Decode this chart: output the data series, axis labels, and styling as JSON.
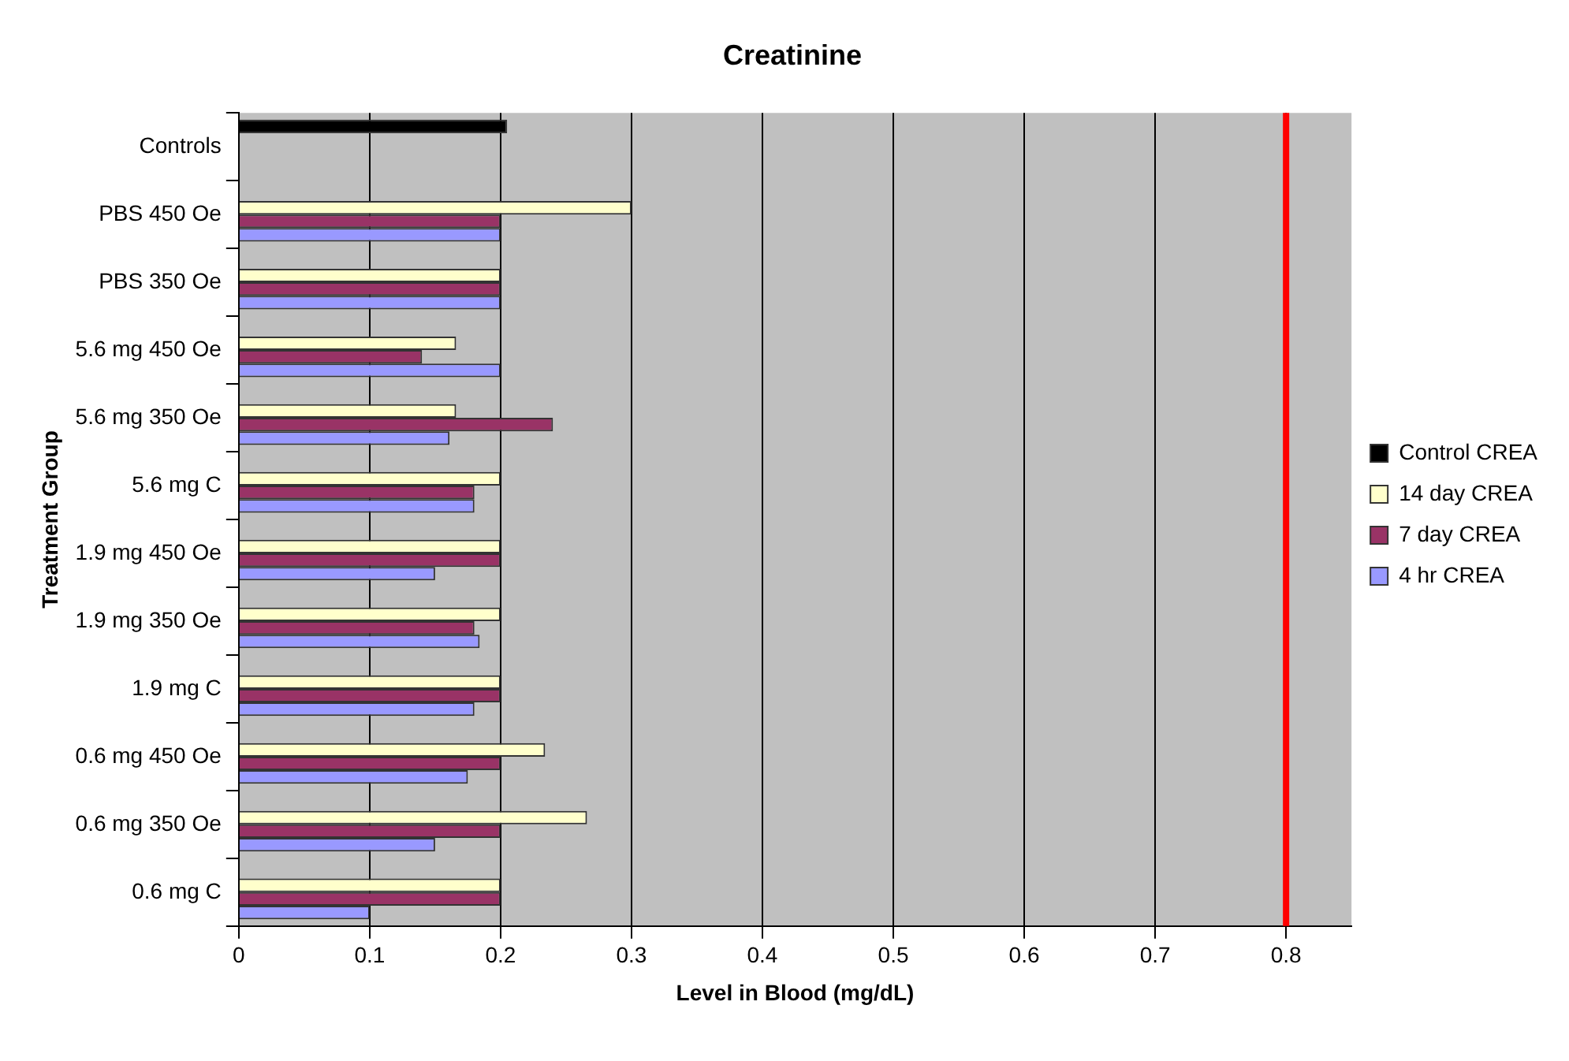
{
  "chart_data": {
    "type": "bar",
    "orientation": "horizontal",
    "title": "Creatinine",
    "xlabel": "Level in Blood (mg/dL)",
    "ylabel": "Treatment Group",
    "categories": [
      "Controls",
      "PBS 450 Oe",
      "PBS 350 Oe",
      "5.6 mg 450 Oe",
      "5.6 mg 350 Oe",
      "5.6 mg C",
      "1.9 mg 450 Oe",
      "1.9 mg 350 Oe",
      "1.9 mg C",
      "0.6 mg 450 Oe",
      "0.6 mg 350 Oe",
      "0.6 mg C"
    ],
    "series": [
      {
        "name": "Control CREA",
        "color": "#000000",
        "values": [
          0.205,
          null,
          null,
          null,
          null,
          null,
          null,
          null,
          null,
          null,
          null,
          null
        ]
      },
      {
        "name": "14 day CREA",
        "color": "#ffffcc",
        "values": [
          null,
          0.3,
          0.2,
          0.166,
          0.166,
          0.2,
          0.2,
          0.2,
          0.2,
          0.234,
          0.266,
          0.2
        ]
      },
      {
        "name": "7 day CREA",
        "color": "#993366",
        "values": [
          null,
          0.2,
          0.2,
          0.14,
          0.24,
          0.18,
          0.2,
          0.18,
          0.2,
          0.2,
          0.2,
          0.2
        ]
      },
      {
        "name": "4 hr CREA",
        "color": "#9999ff",
        "values": [
          null,
          0.2,
          0.2,
          0.2,
          0.161,
          0.18,
          0.15,
          0.184,
          0.18,
          0.175,
          0.15,
          0.1
        ]
      }
    ],
    "xlim": [
      0,
      0.85
    ],
    "xticks": [
      0,
      0.1,
      0.2,
      0.3,
      0.4,
      0.5,
      0.6,
      0.7,
      0.8
    ],
    "ref_lines": [
      {
        "axis": "x",
        "value": 0.8,
        "color": "#ff0000"
      }
    ],
    "grid": "x",
    "legend": "right"
  }
}
